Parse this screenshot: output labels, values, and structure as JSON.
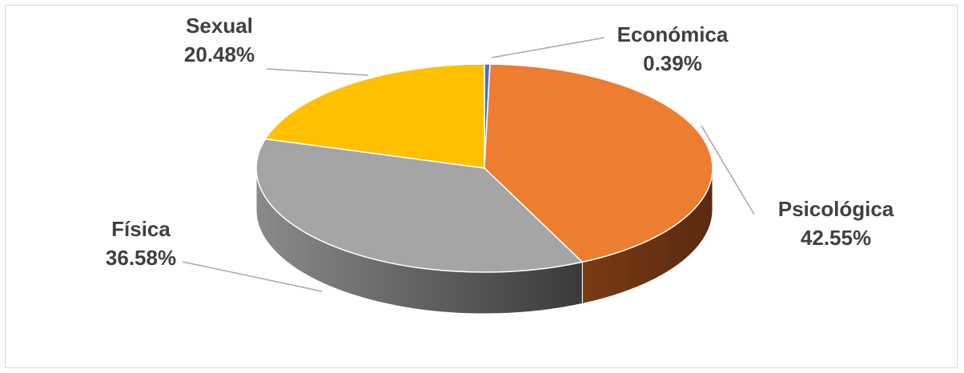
{
  "chart_data": {
    "type": "pie",
    "style": "3d",
    "slices": [
      {
        "label": "Económica",
        "value": 0.39,
        "display": "0.39%",
        "color": "#4472c4"
      },
      {
        "label": "Psicológica",
        "value": 42.55,
        "display": "42.55%",
        "color": "#ed7d31"
      },
      {
        "label": "Física",
        "value": 36.58,
        "display": "36.58%",
        "color": "#a5a5a5"
      },
      {
        "label": "Sexual",
        "value": 20.48,
        "display": "20.48%",
        "color": "#ffc000"
      }
    ],
    "title": "",
    "legend": "none",
    "data_labels": "outside with leader lines"
  }
}
